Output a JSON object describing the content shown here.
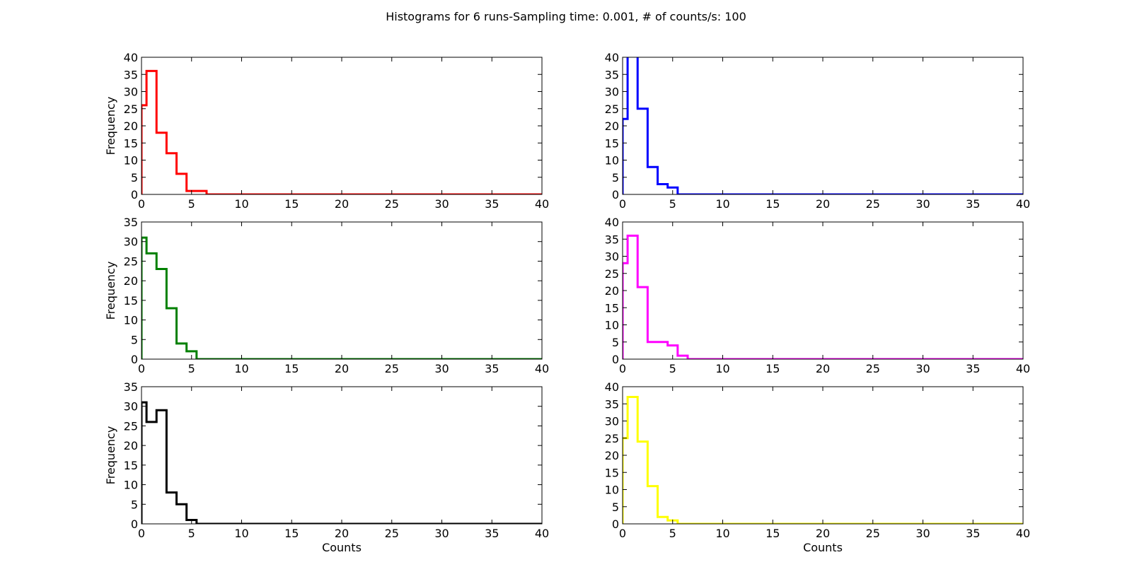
{
  "figure": {
    "suptitle": "Histograms for 6 runs-Sampling time: 0.001, # of counts/s: 100"
  },
  "chart_data": [
    {
      "type": "histogram",
      "title": "",
      "xlabel": "",
      "ylabel": "Frequency",
      "color": "#ff0000",
      "xlim": [
        0,
        40
      ],
      "ylim": [
        0,
        40
      ],
      "xticks": [
        0,
        5,
        10,
        15,
        20,
        25,
        30,
        35,
        40
      ],
      "yticks": [
        0,
        5,
        10,
        15,
        20,
        25,
        30,
        35,
        40
      ],
      "bins": [
        {
          "x0": 0,
          "x1": 0.5,
          "y": 26
        },
        {
          "x0": 0.5,
          "x1": 1.5,
          "y": 36
        },
        {
          "x0": 1.5,
          "x1": 2.5,
          "y": 18
        },
        {
          "x0": 2.5,
          "x1": 3.5,
          "y": 12
        },
        {
          "x0": 3.5,
          "x1": 4.5,
          "y": 6
        },
        {
          "x0": 4.5,
          "x1": 6.5,
          "y": 1
        },
        {
          "x0": 6.5,
          "x1": 40,
          "y": 0
        }
      ]
    },
    {
      "type": "histogram",
      "title": "",
      "xlabel": "",
      "ylabel": "",
      "color": "#0000ff",
      "xlim": [
        0,
        40
      ],
      "ylim": [
        0,
        40
      ],
      "xticks": [
        0,
        5,
        10,
        15,
        20,
        25,
        30,
        35,
        40
      ],
      "yticks": [
        0,
        5,
        10,
        15,
        20,
        25,
        30,
        35,
        40
      ],
      "bins": [
        {
          "x0": 0,
          "x1": 0.5,
          "y": 22
        },
        {
          "x0": 0.5,
          "x1": 1.5,
          "y": 42
        },
        {
          "x0": 1.5,
          "x1": 2.5,
          "y": 25
        },
        {
          "x0": 2.5,
          "x1": 3.5,
          "y": 8
        },
        {
          "x0": 3.5,
          "x1": 4.5,
          "y": 3
        },
        {
          "x0": 4.5,
          "x1": 5.5,
          "y": 2
        },
        {
          "x0": 5.5,
          "x1": 40,
          "y": 0
        }
      ]
    },
    {
      "type": "histogram",
      "title": "",
      "xlabel": "",
      "ylabel": "Frequency",
      "color": "#008000",
      "xlim": [
        0,
        40
      ],
      "ylim": [
        0,
        35
      ],
      "xticks": [
        0,
        5,
        10,
        15,
        20,
        25,
        30,
        35,
        40
      ],
      "yticks": [
        0,
        5,
        10,
        15,
        20,
        25,
        30,
        35
      ],
      "bins": [
        {
          "x0": 0,
          "x1": 0.5,
          "y": 31
        },
        {
          "x0": 0.5,
          "x1": 1.5,
          "y": 27
        },
        {
          "x0": 1.5,
          "x1": 2.5,
          "y": 23
        },
        {
          "x0": 2.5,
          "x1": 3.5,
          "y": 13
        },
        {
          "x0": 3.5,
          "x1": 4.5,
          "y": 4
        },
        {
          "x0": 4.5,
          "x1": 5.5,
          "y": 2
        },
        {
          "x0": 5.5,
          "x1": 40,
          "y": 0
        }
      ]
    },
    {
      "type": "histogram",
      "title": "",
      "xlabel": "",
      "ylabel": "",
      "color": "#ff00ff",
      "xlim": [
        0,
        40
      ],
      "ylim": [
        0,
        40
      ],
      "xticks": [
        0,
        5,
        10,
        15,
        20,
        25,
        30,
        35,
        40
      ],
      "yticks": [
        0,
        5,
        10,
        15,
        20,
        25,
        30,
        35,
        40
      ],
      "bins": [
        {
          "x0": 0,
          "x1": 0.5,
          "y": 28
        },
        {
          "x0": 0.5,
          "x1": 1.5,
          "y": 36
        },
        {
          "x0": 1.5,
          "x1": 2.5,
          "y": 21
        },
        {
          "x0": 2.5,
          "x1": 4.5,
          "y": 5
        },
        {
          "x0": 4.5,
          "x1": 5.5,
          "y": 4
        },
        {
          "x0": 5.5,
          "x1": 6.5,
          "y": 1
        },
        {
          "x0": 6.5,
          "x1": 40,
          "y": 0
        }
      ]
    },
    {
      "type": "histogram",
      "title": "",
      "xlabel": "Counts",
      "ylabel": "Frequency",
      "color": "#000000",
      "xlim": [
        0,
        40
      ],
      "ylim": [
        0,
        35
      ],
      "xticks": [
        0,
        5,
        10,
        15,
        20,
        25,
        30,
        35,
        40
      ],
      "yticks": [
        0,
        5,
        10,
        15,
        20,
        25,
        30,
        35
      ],
      "bins": [
        {
          "x0": 0,
          "x1": 0.5,
          "y": 31
        },
        {
          "x0": 0.5,
          "x1": 1.5,
          "y": 26
        },
        {
          "x0": 1.5,
          "x1": 2.5,
          "y": 29
        },
        {
          "x0": 2.5,
          "x1": 3.5,
          "y": 8
        },
        {
          "x0": 3.5,
          "x1": 4.5,
          "y": 5
        },
        {
          "x0": 4.5,
          "x1": 5.5,
          "y": 1
        },
        {
          "x0": 5.5,
          "x1": 40,
          "y": 0
        }
      ]
    },
    {
      "type": "histogram",
      "title": "",
      "xlabel": "Counts",
      "ylabel": "",
      "color": "#ffff00",
      "xlim": [
        0,
        40
      ],
      "ylim": [
        0,
        40
      ],
      "xticks": [
        0,
        5,
        10,
        15,
        20,
        25,
        30,
        35,
        40
      ],
      "yticks": [
        0,
        5,
        10,
        15,
        20,
        25,
        30,
        35,
        40
      ],
      "bins": [
        {
          "x0": 0,
          "x1": 0.5,
          "y": 25
        },
        {
          "x0": 0.5,
          "x1": 1.5,
          "y": 37
        },
        {
          "x0": 1.5,
          "x1": 2.5,
          "y": 24
        },
        {
          "x0": 2.5,
          "x1": 3.5,
          "y": 11
        },
        {
          "x0": 3.5,
          "x1": 4.5,
          "y": 2
        },
        {
          "x0": 4.5,
          "x1": 5.5,
          "y": 1
        },
        {
          "x0": 5.5,
          "x1": 40,
          "y": 0
        }
      ]
    }
  ]
}
